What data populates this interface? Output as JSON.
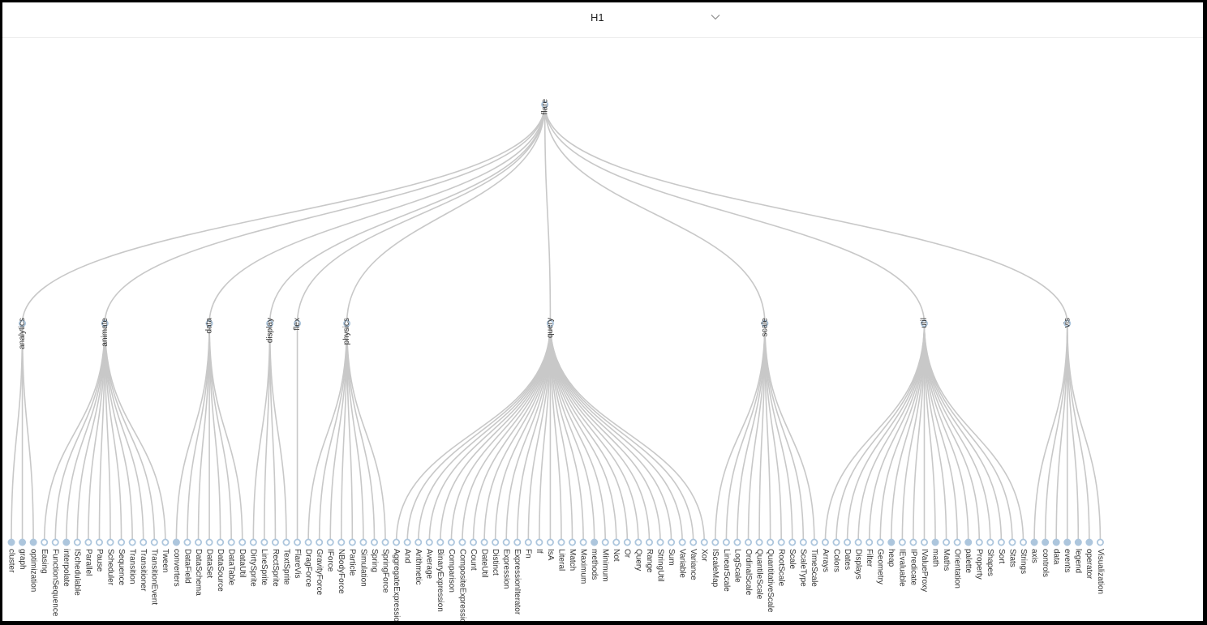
{
  "toolbar": {
    "heading_value": "H1",
    "dropdown_icon": "chevron-down-icon"
  },
  "colors": {
    "link": "#c8c8c8",
    "node_stroke": "#adc6dd",
    "node_collapsed_fill": "#adc6dd",
    "node_open_fill": "#ffffff",
    "label": "#333333"
  },
  "tree": {
    "name": "flare",
    "children": [
      {
        "name": "analytics",
        "children": [
          {
            "name": "cluster",
            "collapsed": true
          },
          {
            "name": "graph",
            "collapsed": true
          },
          {
            "name": "optimization",
            "collapsed": true
          }
        ]
      },
      {
        "name": "animate",
        "children": [
          {
            "name": "Easing"
          },
          {
            "name": "FunctionSequence"
          },
          {
            "name": "interpolate",
            "collapsed": true
          },
          {
            "name": "ISchedulable"
          },
          {
            "name": "Parallel"
          },
          {
            "name": "Pause"
          },
          {
            "name": "Scheduler"
          },
          {
            "name": "Sequence"
          },
          {
            "name": "Transition"
          },
          {
            "name": "Transitioner"
          },
          {
            "name": "TransitionEvent"
          },
          {
            "name": "Tween"
          }
        ]
      },
      {
        "name": "data",
        "children": [
          {
            "name": "converters",
            "collapsed": true
          },
          {
            "name": "DataField"
          },
          {
            "name": "DataSchema"
          },
          {
            "name": "DataSet"
          },
          {
            "name": "DataSource"
          },
          {
            "name": "DataTable"
          },
          {
            "name": "DataUtil"
          }
        ]
      },
      {
        "name": "display",
        "children": [
          {
            "name": "DirtySprite"
          },
          {
            "name": "LineSprite"
          },
          {
            "name": "RectSprite"
          },
          {
            "name": "TextSprite"
          }
        ]
      },
      {
        "name": "flex",
        "children": [
          {
            "name": "FlareVis"
          }
        ]
      },
      {
        "name": "physics",
        "children": [
          {
            "name": "DragForce"
          },
          {
            "name": "GravityForce"
          },
          {
            "name": "IForce"
          },
          {
            "name": "NBodyForce"
          },
          {
            "name": "Particle"
          },
          {
            "name": "Simulation"
          },
          {
            "name": "Spring"
          },
          {
            "name": "SpringForce"
          }
        ]
      },
      {
        "name": "query",
        "children": [
          {
            "name": "AggregateExpression"
          },
          {
            "name": "And"
          },
          {
            "name": "Arithmetic"
          },
          {
            "name": "Average"
          },
          {
            "name": "BinaryExpression"
          },
          {
            "name": "Comparison"
          },
          {
            "name": "CompositeExpression"
          },
          {
            "name": "Count"
          },
          {
            "name": "DateUtil"
          },
          {
            "name": "Distinct"
          },
          {
            "name": "Expression"
          },
          {
            "name": "ExpressionIterator"
          },
          {
            "name": "Fn"
          },
          {
            "name": "If"
          },
          {
            "name": "IsA"
          },
          {
            "name": "Literal"
          },
          {
            "name": "Match"
          },
          {
            "name": "Maximum"
          },
          {
            "name": "methods",
            "collapsed": true
          },
          {
            "name": "Minimum"
          },
          {
            "name": "Not"
          },
          {
            "name": "Or"
          },
          {
            "name": "Query"
          },
          {
            "name": "Range"
          },
          {
            "name": "StringUtil"
          },
          {
            "name": "Sum"
          },
          {
            "name": "Variable"
          },
          {
            "name": "Variance"
          },
          {
            "name": "Xor"
          }
        ]
      },
      {
        "name": "scale",
        "children": [
          {
            "name": "IScaleMap"
          },
          {
            "name": "LinearScale"
          },
          {
            "name": "LogScale"
          },
          {
            "name": "OrdinalScale"
          },
          {
            "name": "QuantileScale"
          },
          {
            "name": "QuantitativeScale"
          },
          {
            "name": "RootScale"
          },
          {
            "name": "Scale"
          },
          {
            "name": "ScaleType"
          },
          {
            "name": "TimeScale"
          }
        ]
      },
      {
        "name": "util",
        "children": [
          {
            "name": "Arrays"
          },
          {
            "name": "Colors"
          },
          {
            "name": "Dates"
          },
          {
            "name": "Displays"
          },
          {
            "name": "Filter"
          },
          {
            "name": "Geometry"
          },
          {
            "name": "heap",
            "collapsed": true
          },
          {
            "name": "IEvaluable"
          },
          {
            "name": "IPredicate"
          },
          {
            "name": "IValueProxy"
          },
          {
            "name": "math",
            "collapsed": true
          },
          {
            "name": "Maths"
          },
          {
            "name": "Orientation"
          },
          {
            "name": "palette",
            "collapsed": true
          },
          {
            "name": "Property"
          },
          {
            "name": "Shapes"
          },
          {
            "name": "Sort"
          },
          {
            "name": "Stats"
          },
          {
            "name": "Strings"
          }
        ]
      },
      {
        "name": "vis",
        "children": [
          {
            "name": "axis",
            "collapsed": true
          },
          {
            "name": "controls",
            "collapsed": true
          },
          {
            "name": "data",
            "collapsed": true
          },
          {
            "name": "events",
            "collapsed": true
          },
          {
            "name": "legend",
            "collapsed": true
          },
          {
            "name": "operator",
            "collapsed": true
          },
          {
            "name": "Visualization"
          }
        ]
      }
    ]
  }
}
